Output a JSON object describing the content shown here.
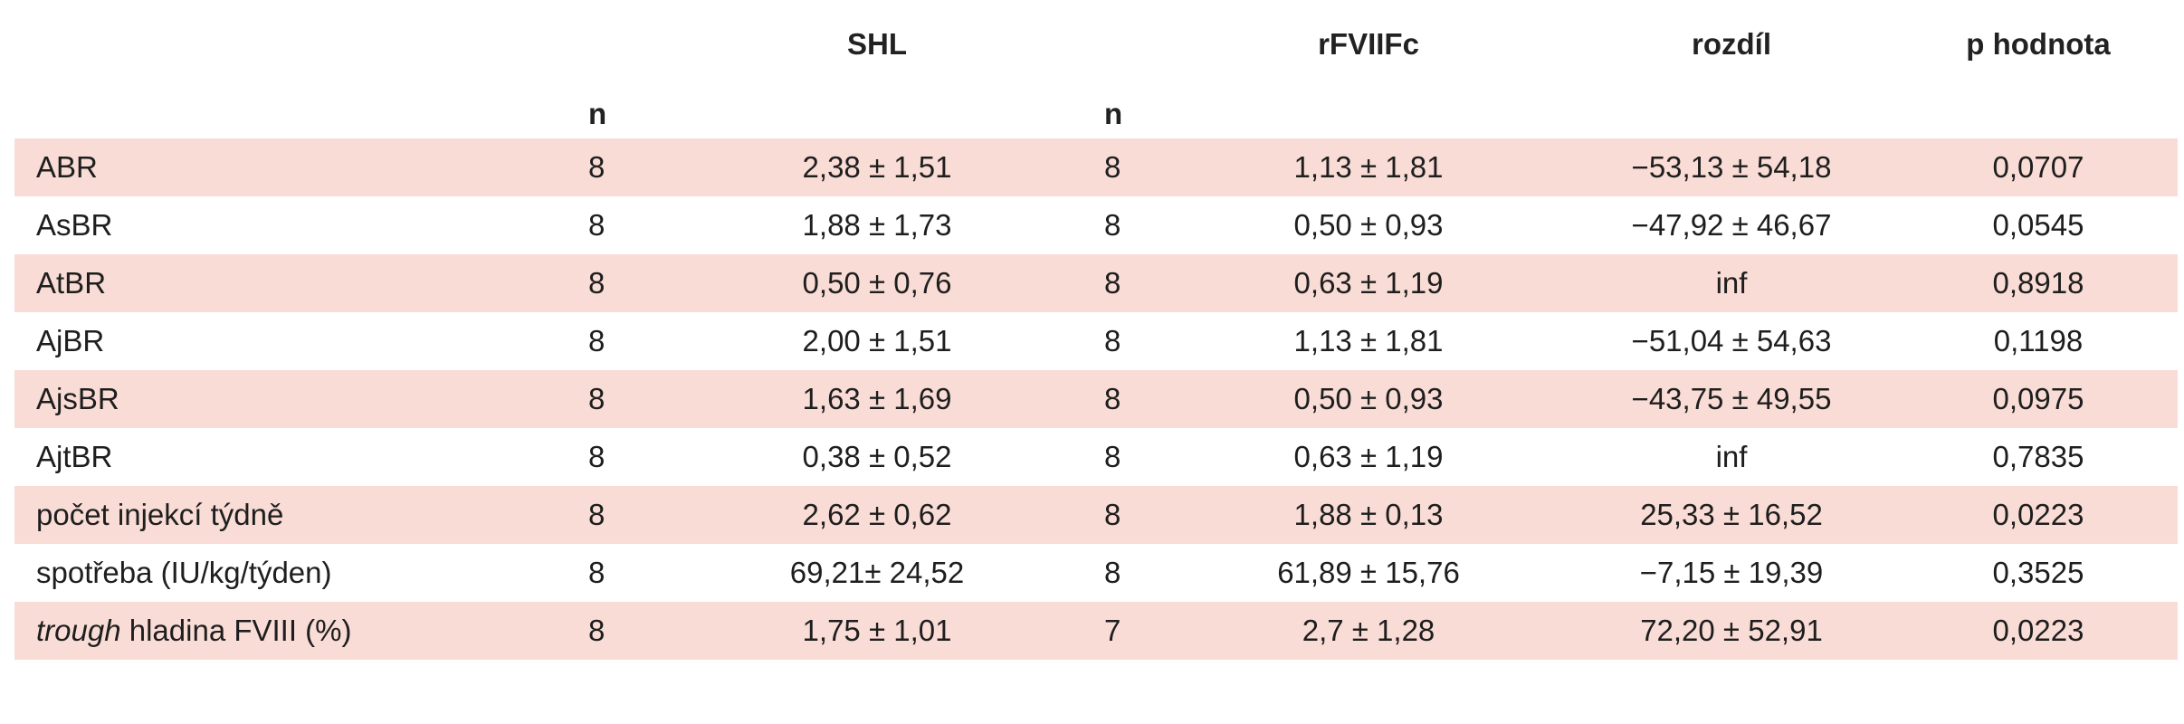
{
  "header": {
    "shl": "SHL",
    "rfviiifc": "rFVIIFc",
    "difference": "rozdíl",
    "p_value": "p hodnota",
    "n1": "n",
    "n2": "n"
  },
  "rows": [
    {
      "label": "ABR",
      "label_italic": "",
      "n1": "8",
      "shl": "2,38 ± 1,51",
      "n2": "8",
      "rf": "1,13 ± 1,81",
      "diff": "−53,13 ± 54,18",
      "p": "0,0707"
    },
    {
      "label": "AsBR",
      "label_italic": "",
      "n1": "8",
      "shl": "1,88 ± 1,73",
      "n2": "8",
      "rf": "0,50 ± 0,93",
      "diff": "−47,92 ± 46,67",
      "p": "0,0545"
    },
    {
      "label": "AtBR",
      "label_italic": "",
      "n1": "8",
      "shl": "0,50 ± 0,76",
      "n2": "8",
      "rf": "0,63 ± 1,19",
      "diff": "inf",
      "p": "0,8918"
    },
    {
      "label": "AjBR",
      "label_italic": "",
      "n1": "8",
      "shl": "2,00 ± 1,51",
      "n2": "8",
      "rf": "1,13 ± 1,81",
      "diff": "−51,04 ± 54,63",
      "p": "0,1198"
    },
    {
      "label": "AjsBR",
      "label_italic": "",
      "n1": "8",
      "shl": "1,63 ± 1,69",
      "n2": "8",
      "rf": "0,50 ± 0,93",
      "diff": "−43,75 ± 49,55",
      "p": "0,0975"
    },
    {
      "label": "AjtBR",
      "label_italic": "",
      "n1": "8",
      "shl": "0,38 ± 0,52",
      "n2": "8",
      "rf": "0,63 ± 1,19",
      "diff": "inf",
      "p": "0,7835"
    },
    {
      "label": "počet injekcí týdně",
      "label_italic": "",
      "n1": "8",
      "shl": "2,62 ± 0,62",
      "n2": "8",
      "rf": "1,88 ± 0,13",
      "diff": "25,33 ± 16,52",
      "p": "0,0223"
    },
    {
      "label": "spotřeba (IU/kg/týden)",
      "label_italic": "",
      "n1": "8",
      "shl": "69,21± 24,52",
      "n2": "8",
      "rf": "61,89 ± 15,76",
      "diff": "−7,15 ± 19,39",
      "p": "0,3525"
    },
    {
      "label": " hladina FVIII (%)",
      "label_italic": "trough",
      "n1": "8",
      "shl": "1,75 ± 1,01",
      "n2": "7",
      "rf": "2,7 ± 1,28",
      "diff": "72,20 ± 52,91",
      "p": "0,0223"
    }
  ],
  "colors": {
    "row_shade": "#f9dcd6",
    "text": "#1e1e1e"
  }
}
